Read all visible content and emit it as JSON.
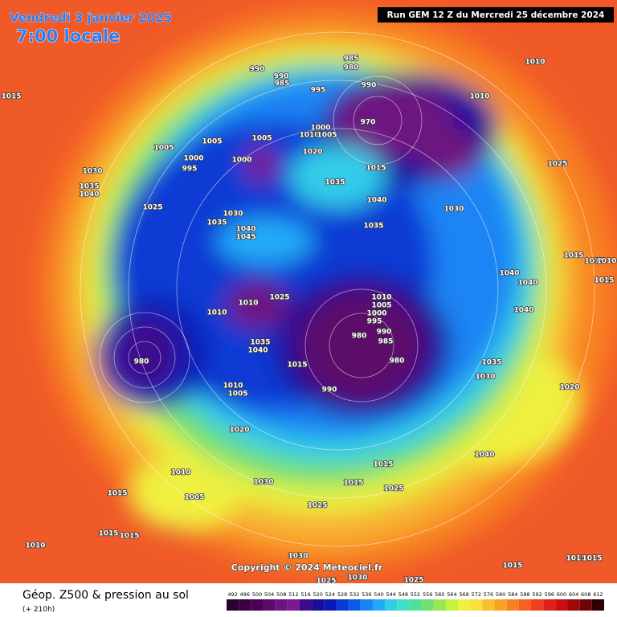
{
  "header": {
    "title": "Vendredi 3 janvier 2025",
    "time": "7:00 locale",
    "run": "Run GEM 12 Z du Mercredi 25 décembre 2024"
  },
  "map": {
    "copyright": "Copyright © 2024 Meteociel.fr",
    "pressure_labels": [
      990,
      985,
      980,
      990,
      985,
      995,
      990,
      1010,
      1010,
      1015,
      970,
      1000,
      1010,
      1005,
      1005,
      1005,
      1005,
      1020,
      1000,
      995,
      1000,
      1015,
      1025,
      1030,
      1035,
      1040,
      1035,
      1040,
      1025,
      1030,
      1030,
      1035,
      1040,
      1045,
      1035,
      1040,
      1040,
      1025,
      1010,
      1005,
      1000,
      995,
      1010,
      1010,
      990,
      985,
      980,
      980,
      1040,
      1035,
      1040,
      1015,
      1035,
      1030,
      1010,
      1005,
      990,
      1020,
      1020,
      1040,
      1015,
      1010,
      1030,
      1015,
      1025,
      1015,
      1005,
      1025,
      1015,
      1015,
      1010,
      1030,
      1030,
      1015,
      1015,
      1015,
      1025,
      1025,
      1015,
      1015,
      1010,
      1015,
      980
    ]
  },
  "footer": {
    "field": "Géop. Z500 & pression au sol",
    "lead": "(+ 210h)",
    "scale": {
      "values": [
        492,
        496,
        500,
        504,
        508,
        512,
        516,
        520,
        524,
        528,
        532,
        536,
        540,
        544,
        548,
        552,
        556,
        560,
        564,
        568,
        572,
        576,
        580,
        584,
        588,
        592,
        596,
        600,
        604,
        608,
        612
      ],
      "colors": [
        "#2a0030",
        "#3a0040",
        "#4b0055",
        "#5c0a6a",
        "#6e1480",
        "#7a1a90",
        "#3c0a8c",
        "#1c0c9c",
        "#0a1ab4",
        "#0a3ad4",
        "#0a5ae8",
        "#1a84f4",
        "#20aaf8",
        "#30cce8",
        "#40e0c8",
        "#50e09a",
        "#70e070",
        "#9ae850",
        "#c8f040",
        "#f0f040",
        "#f8e040",
        "#f8c030",
        "#f8a020",
        "#f88020",
        "#f86020",
        "#f04020",
        "#e02018",
        "#c81010",
        "#a00808",
        "#700404",
        "#300000"
      ]
    }
  }
}
